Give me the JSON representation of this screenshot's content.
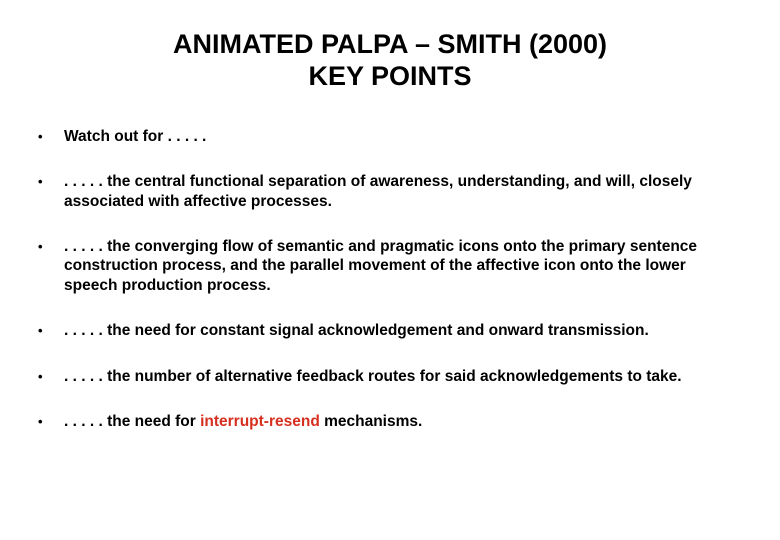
{
  "title": {
    "line1": "ANIMATED PALPA – SMITH (2000)",
    "line2": "KEY POINTS"
  },
  "title_fontsize": 27,
  "title_weight": "bold",
  "body_fontsize": 15.5,
  "body_weight": "bold",
  "background_color": "#ffffff",
  "text_color": "#000000",
  "accent_color": "#d62f1f",
  "bullet_marker": "•",
  "bullets": [
    {
      "text": "Watch out for . . . . ."
    },
    {
      "text": ". . . . . the central functional separation of awareness, understanding, and will, closely associated with affective processes."
    },
    {
      "text": ". . . . . the converging flow of semantic and pragmatic icons onto the primary sentence construction process, and the parallel movement of the affective icon onto the lower speech production process."
    },
    {
      "text": ". . . . . the need for constant signal acknowledgement and onward transmission."
    },
    {
      "text": ". . . . . the number of alternative feedback routes for said acknowledgements to take."
    },
    {
      "text_pre": ". . . . . the need for ",
      "text_accent": "interrupt-resend",
      "text_post": " mechanisms."
    }
  ]
}
